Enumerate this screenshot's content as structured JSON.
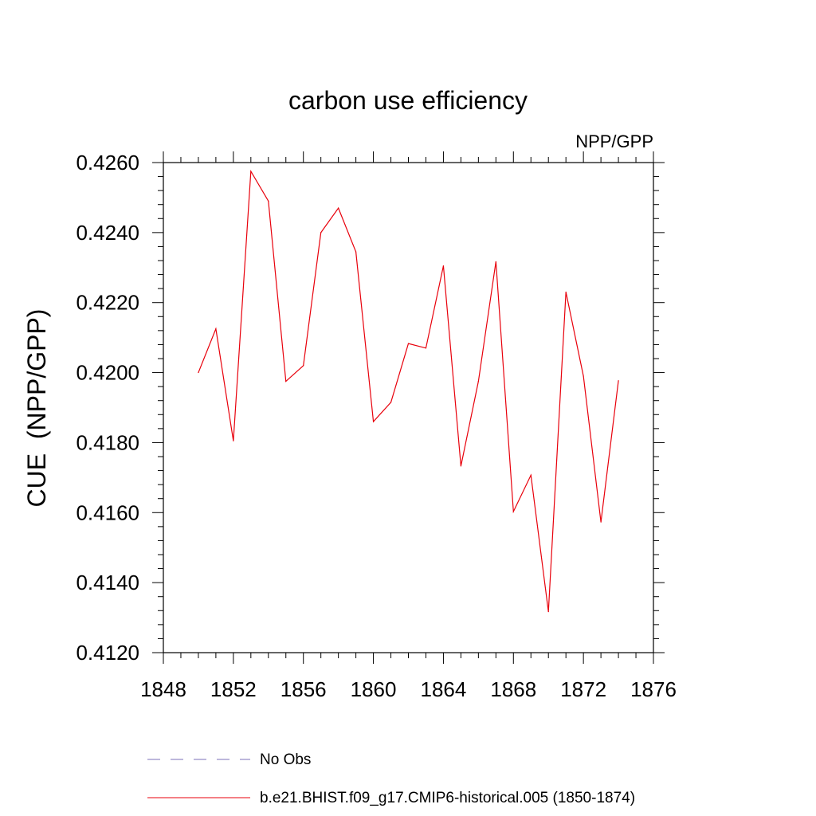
{
  "chart_data": {
    "type": "line",
    "title": "carbon use efficiency",
    "subtitle": "NPP/GPP",
    "xlabel": "",
    "ylabel": "CUE  (NPP/GPP)",
    "xlim": [
      1848,
      1876
    ],
    "ylim": [
      0.412,
      0.426
    ],
    "x_ticks": [
      1848,
      1852,
      1856,
      1860,
      1864,
      1868,
      1872,
      1876
    ],
    "x_tick_labels": [
      "1848",
      "1852",
      "1856",
      "1860",
      "1864",
      "1868",
      "1872",
      "1876"
    ],
    "y_ticks": [
      0.412,
      0.414,
      0.416,
      0.418,
      0.42,
      0.422,
      0.424,
      0.426
    ],
    "y_tick_labels": [
      "0.4120",
      "0.4140",
      "0.4160",
      "0.4180",
      "0.4200",
      "0.4220",
      "0.4240",
      "0.4260"
    ],
    "grid": false,
    "legend_position": "bottom",
    "series": [
      {
        "name": "b.e21.BHIST.f09_g17.CMIP6-historical.005 (1850-1874)",
        "color": "#e8000b",
        "style": "solid",
        "x": [
          1850,
          1851,
          1852,
          1853,
          1854,
          1855,
          1856,
          1857,
          1858,
          1859,
          1860,
          1861,
          1862,
          1863,
          1864,
          1865,
          1866,
          1867,
          1868,
          1869,
          1870,
          1871,
          1872,
          1873,
          1874
        ],
        "values": [
          0.42,
          0.42125,
          0.41805,
          0.42575,
          0.4249,
          0.41975,
          0.4202,
          0.424,
          0.4247,
          0.42345,
          0.4186,
          0.41915,
          0.42083,
          0.4207,
          0.42305,
          0.41733,
          0.41975,
          0.42317,
          0.41603,
          0.41707,
          0.41317,
          0.4223,
          0.4199,
          0.41573,
          0.41977
        ]
      }
    ],
    "legend": [
      {
        "label": "No Obs",
        "color": "#7b72b8",
        "style": "dashed"
      },
      {
        "label": "b.e21.BHIST.f09_g17.CMIP6-historical.005 (1850-1874)",
        "color": "#e8000b",
        "style": "solid"
      }
    ]
  }
}
